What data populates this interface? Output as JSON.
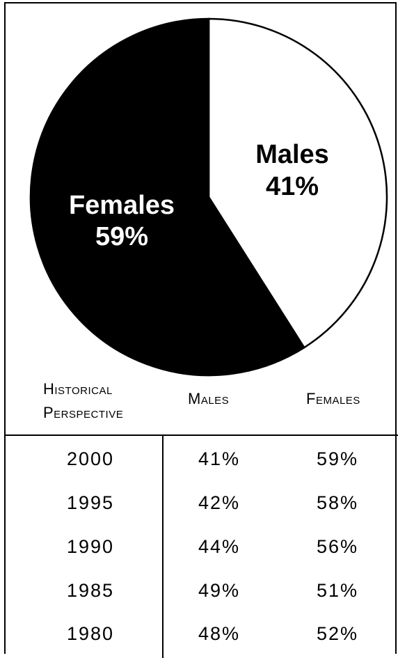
{
  "chart_data": {
    "type": "pie",
    "slices": [
      {
        "label": "Males",
        "value": 41,
        "display": "41%",
        "color": "#ffffff"
      },
      {
        "label": "Females",
        "value": 59,
        "display": "59%",
        "color": "#000000"
      }
    ]
  },
  "table": {
    "headers": {
      "historical_line1": "Historical",
      "historical_line2": "Perspective",
      "males": "Males",
      "females": "Females"
    },
    "rows": [
      {
        "year": "2000",
        "males": "41%",
        "females": "59%"
      },
      {
        "year": "1995",
        "males": "42%",
        "females": "58%"
      },
      {
        "year": "1990",
        "males": "44%",
        "females": "56%"
      },
      {
        "year": "1985",
        "males": "49%",
        "females": "51%"
      },
      {
        "year": "1980",
        "males": "48%",
        "females": "52%"
      }
    ]
  }
}
